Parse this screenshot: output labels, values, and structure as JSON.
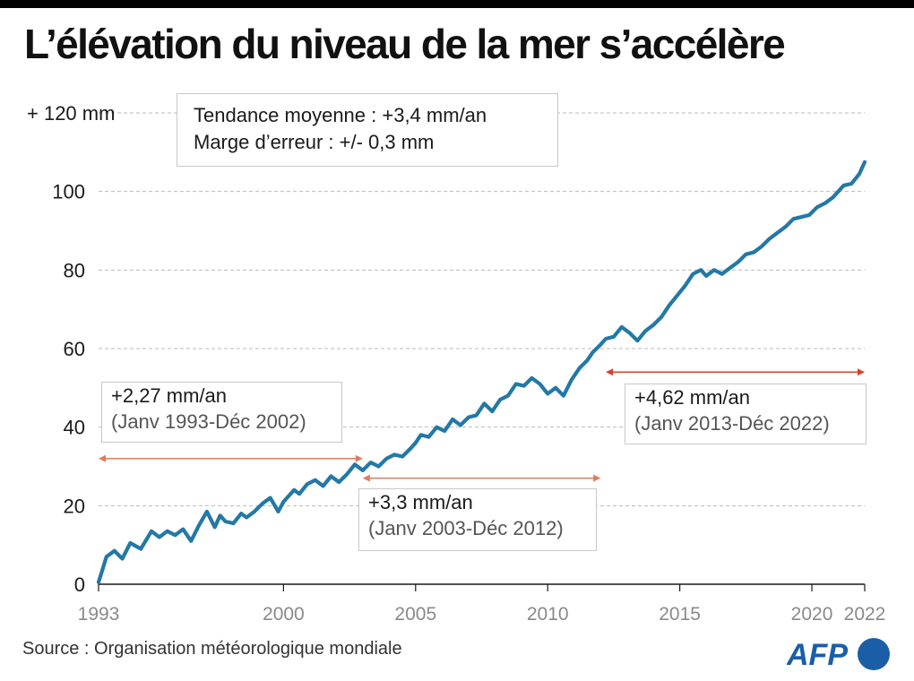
{
  "title": "L’élévation du niveau de la mer s’accélère",
  "trend_box": {
    "line1": "Tendance moyenne :  +3,4 mm/an",
    "line2": "Marge d’erreur : +/- 0,3 mm"
  },
  "annotations": [
    {
      "rate": "+2,27 mm/an",
      "period": "(Janv 1993-Déc 2002)",
      "x_start": 1993.0,
      "x_end": 2003.0,
      "y": 32,
      "color": "#e07b5e"
    },
    {
      "rate": "+3,3 mm/an",
      "period": "(Janv 2003-Déc 2012)",
      "x_start": 2003.0,
      "x_end": 2012.0,
      "y": 27,
      "color": "#e07b5e"
    },
    {
      "rate": "+4,62 mm/an",
      "period": "(Janv 2013-Déc 2022)",
      "x_start": 2012.2,
      "x_end": 2022.0,
      "y": 54,
      "color": "#d2442c"
    }
  ],
  "source": "Source : Organisation météorologique mondiale",
  "logo": "AFP",
  "colors": {
    "line": "#2378a6",
    "arrow_light": "#e07b5e",
    "arrow_dark": "#d2442c",
    "grid": "#b9b9b9"
  },
  "chart_data": {
    "type": "line",
    "title": "L’élévation du niveau de la mer s’accélère",
    "xlabel": "",
    "ylabel": "",
    "xlim": [
      1993,
      2022
    ],
    "ylim": [
      0,
      120
    ],
    "x_ticks": [
      1993,
      2000,
      2005,
      2010,
      2015,
      2020,
      2022
    ],
    "y_ticks": [
      0,
      20,
      40,
      60,
      80,
      100,
      120
    ],
    "y_tick_labels": [
      "0",
      "20",
      "40",
      "60",
      "80",
      "100",
      "+ 120 mm"
    ],
    "grid": "horizontal dashed",
    "series": [
      {
        "name": "",
        "x": [
          1993.0,
          1993.3,
          1993.6,
          1993.9,
          1994.2,
          1994.6,
          1995.0,
          1995.3,
          1995.6,
          1995.9,
          1996.2,
          1996.5,
          1996.8,
          1997.1,
          1997.4,
          1997.6,
          1997.8,
          1998.1,
          1998.4,
          1998.6,
          1998.9,
          1999.2,
          1999.5,
          1999.8,
          2000.0,
          2000.2,
          2000.4,
          2000.6,
          2000.9,
          2001.2,
          2001.5,
          2001.8,
          2002.1,
          2002.4,
          2002.7,
          2003.0,
          2003.3,
          2003.6,
          2003.9,
          2004.2,
          2004.5,
          2004.8,
          2005.0,
          2005.2,
          2005.5,
          2005.8,
          2006.1,
          2006.4,
          2006.7,
          2007.0,
          2007.3,
          2007.6,
          2007.9,
          2008.2,
          2008.5,
          2008.8,
          2009.1,
          2009.4,
          2009.7,
          2010.0,
          2010.3,
          2010.6,
          2010.9,
          2011.2,
          2011.5,
          2011.7,
          2012.0,
          2012.2,
          2012.5,
          2012.8,
          2013.1,
          2013.4,
          2013.7,
          2014.0,
          2014.3,
          2014.6,
          2014.9,
          2015.2,
          2015.5,
          2015.8,
          2016.0,
          2016.3,
          2016.6,
          2016.9,
          2017.2,
          2017.5,
          2017.8,
          2018.1,
          2018.4,
          2018.7,
          2019.0,
          2019.3,
          2019.6,
          2019.9,
          2020.2,
          2020.5,
          2020.8,
          2021.0,
          2021.2,
          2021.5,
          2021.8,
          2022.0
        ],
        "values": [
          0.5,
          7.0,
          8.5,
          6.5,
          10.5,
          9.0,
          13.5,
          12.0,
          13.5,
          12.5,
          14.0,
          11.0,
          15.0,
          18.5,
          14.5,
          17.5,
          16.0,
          15.5,
          18.0,
          17.0,
          18.5,
          20.5,
          22.0,
          18.5,
          21.0,
          22.5,
          24.0,
          23.0,
          25.5,
          26.5,
          25.0,
          27.5,
          26.0,
          28.0,
          30.5,
          29.0,
          31.0,
          30.0,
          32.0,
          33.0,
          32.5,
          34.5,
          36.0,
          38.0,
          37.5,
          40.0,
          39.0,
          42.0,
          40.5,
          42.5,
          43.0,
          46.0,
          44.0,
          47.0,
          48.0,
          51.0,
          50.5,
          52.5,
          51.0,
          48.5,
          50.0,
          48.0,
          52.0,
          55.0,
          57.0,
          59.0,
          61.0,
          62.5,
          63.0,
          65.5,
          64.0,
          62.0,
          64.5,
          66.0,
          68.0,
          71.0,
          73.5,
          76.0,
          79.0,
          80.0,
          78.5,
          80.0,
          79.0,
          80.5,
          82.0,
          84.0,
          84.5,
          86.0,
          88.0,
          89.5,
          91.0,
          93.0,
          93.5,
          94.0,
          96.0,
          97.0,
          98.5,
          100.0,
          101.5,
          102.0,
          104.5,
          107.5
        ]
      }
    ]
  }
}
